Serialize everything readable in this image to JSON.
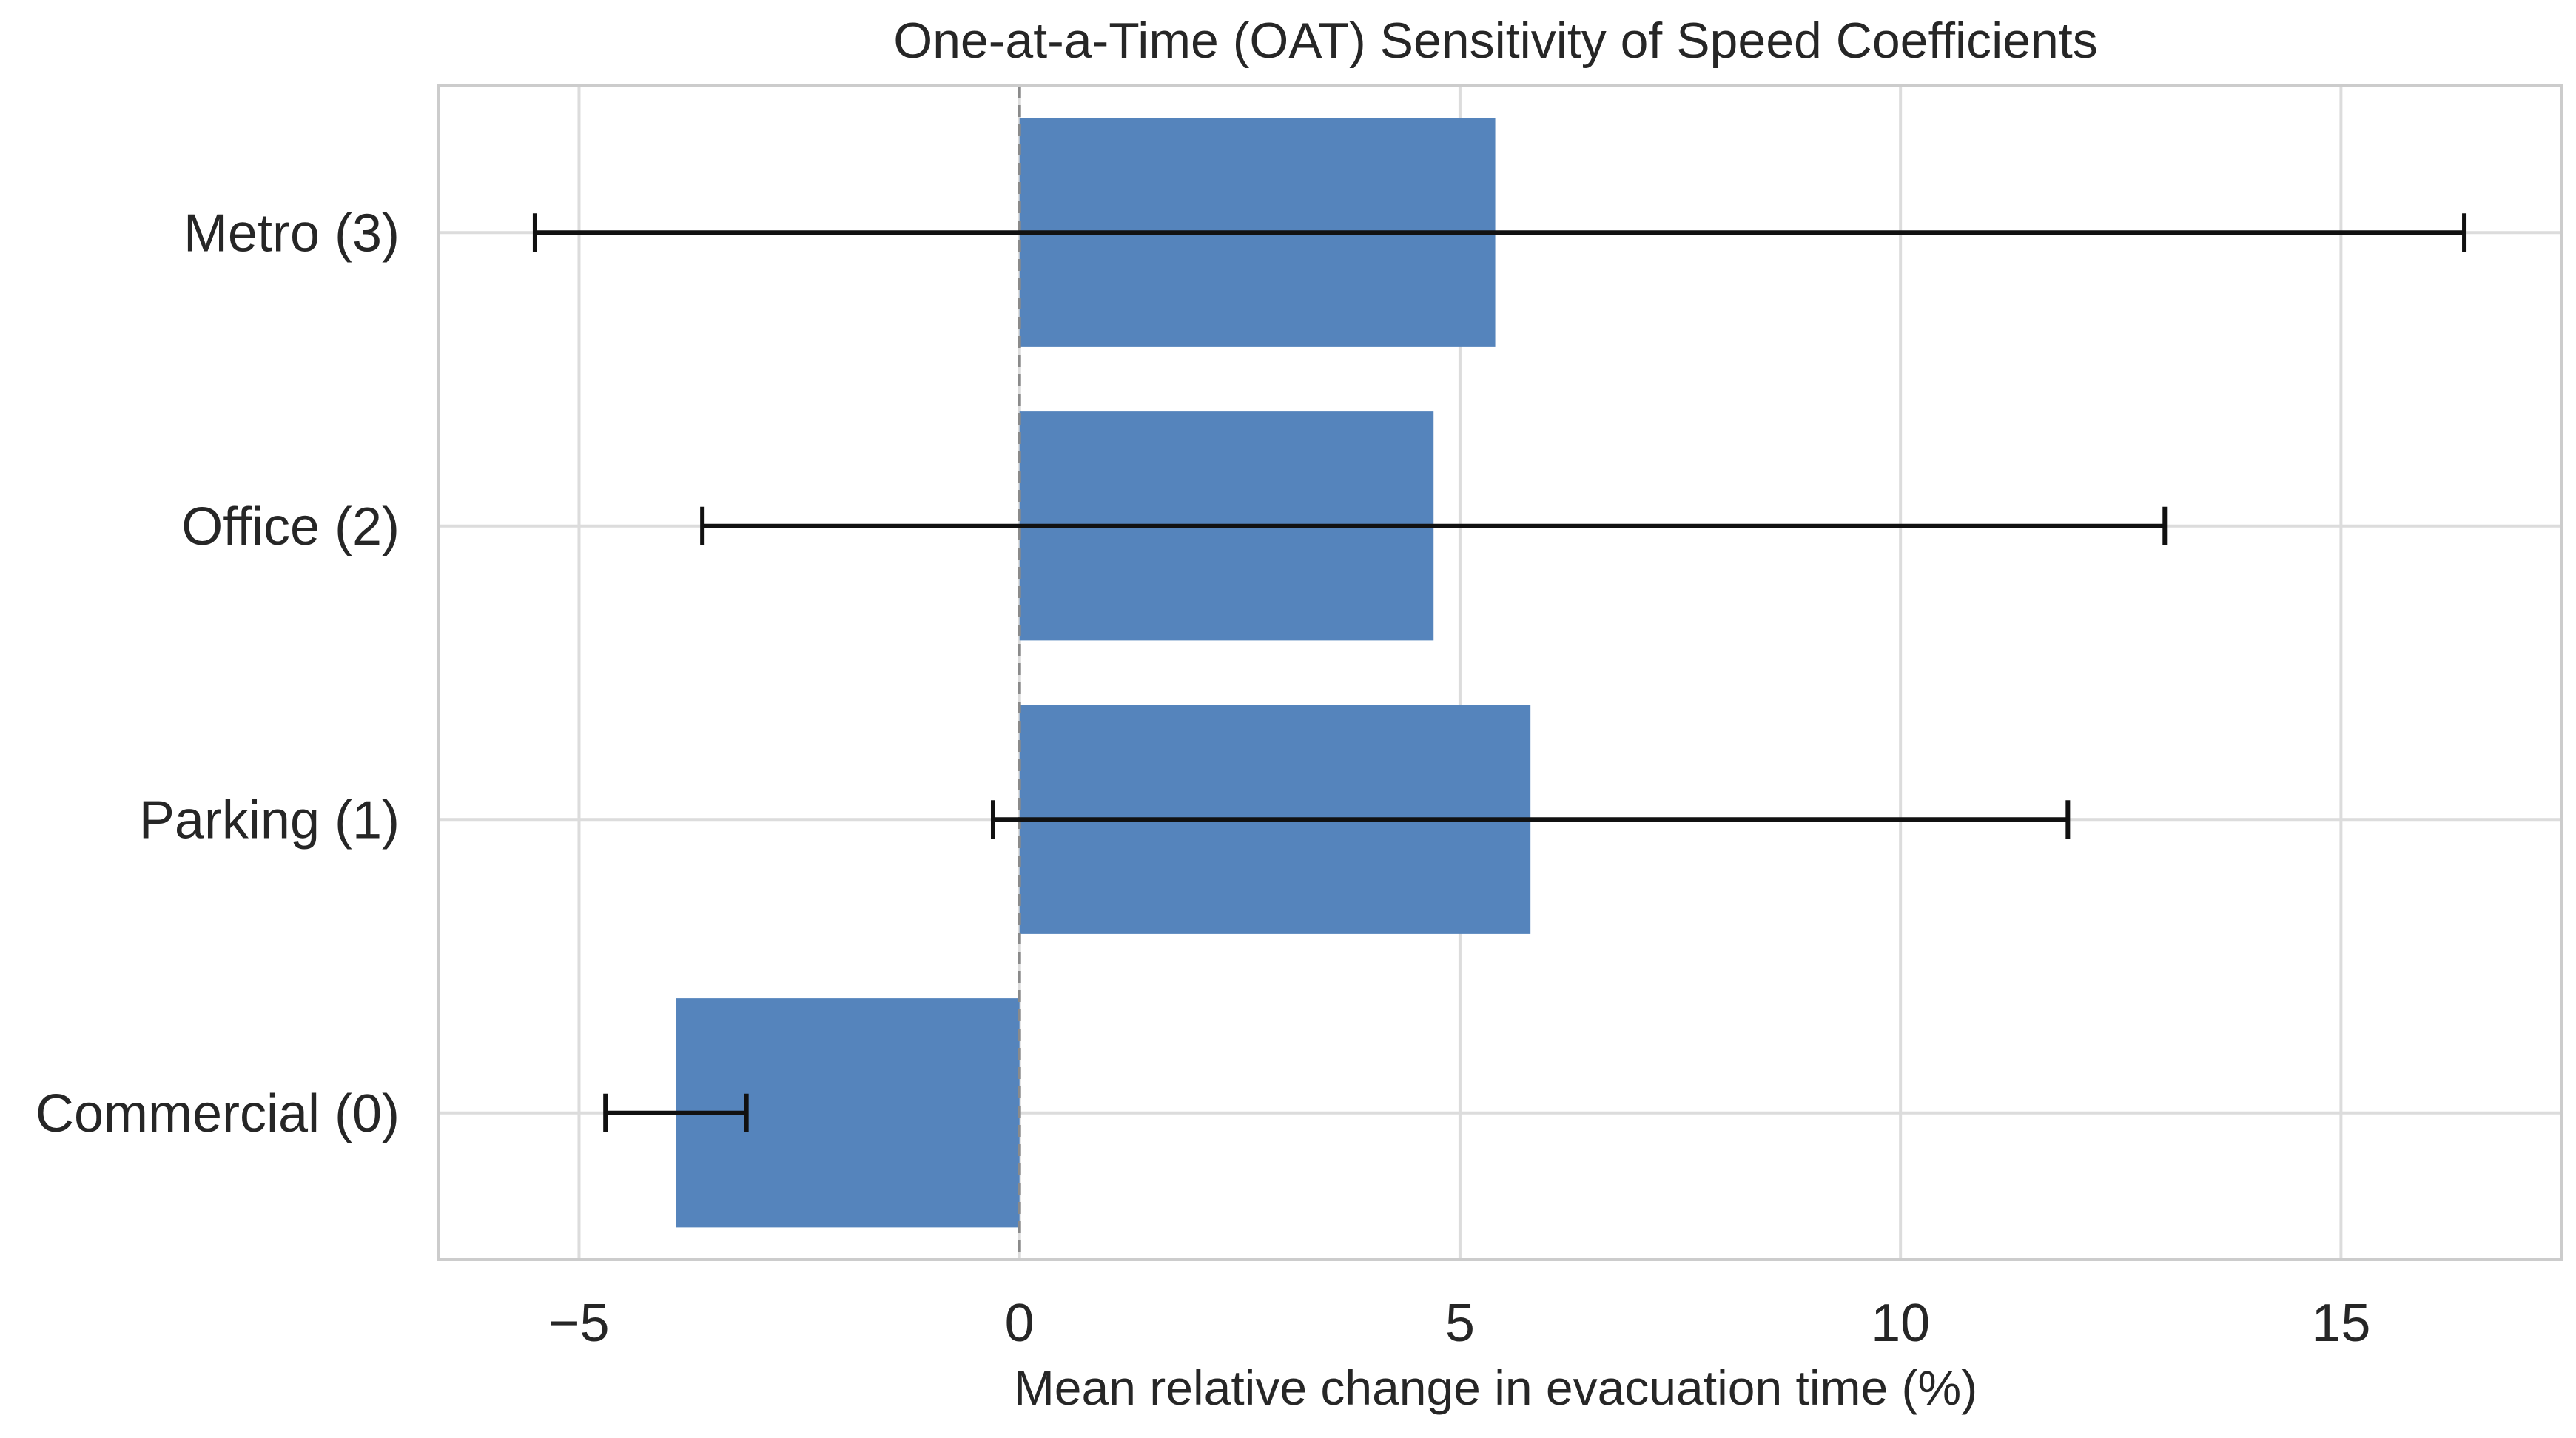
{
  "chart_data": {
    "type": "bar",
    "orientation": "horizontal",
    "title": "One-at-a-Time (OAT) Sensitivity of Speed Coefficients",
    "xlabel": "Mean relative change in evacuation time (%)",
    "ylabel": "",
    "xlim": [
      -6.6,
      17.5
    ],
    "xticks": [
      -5,
      0,
      5,
      10,
      15
    ],
    "xtick_labels": [
      "−5",
      "0",
      "5",
      "10",
      "15"
    ],
    "grid": true,
    "zero_line": "dashed",
    "categories": [
      "Commercial (0)",
      "Parking (1)",
      "Office (2)",
      "Metro (3)"
    ],
    "values": [
      -3.9,
      5.8,
      4.7,
      5.4
    ],
    "error_low": [
      -4.7,
      -0.3,
      -3.6,
      -5.5
    ],
    "error_high": [
      -3.1,
      11.9,
      13.0,
      16.4
    ],
    "bar_color": "#5584bc"
  }
}
